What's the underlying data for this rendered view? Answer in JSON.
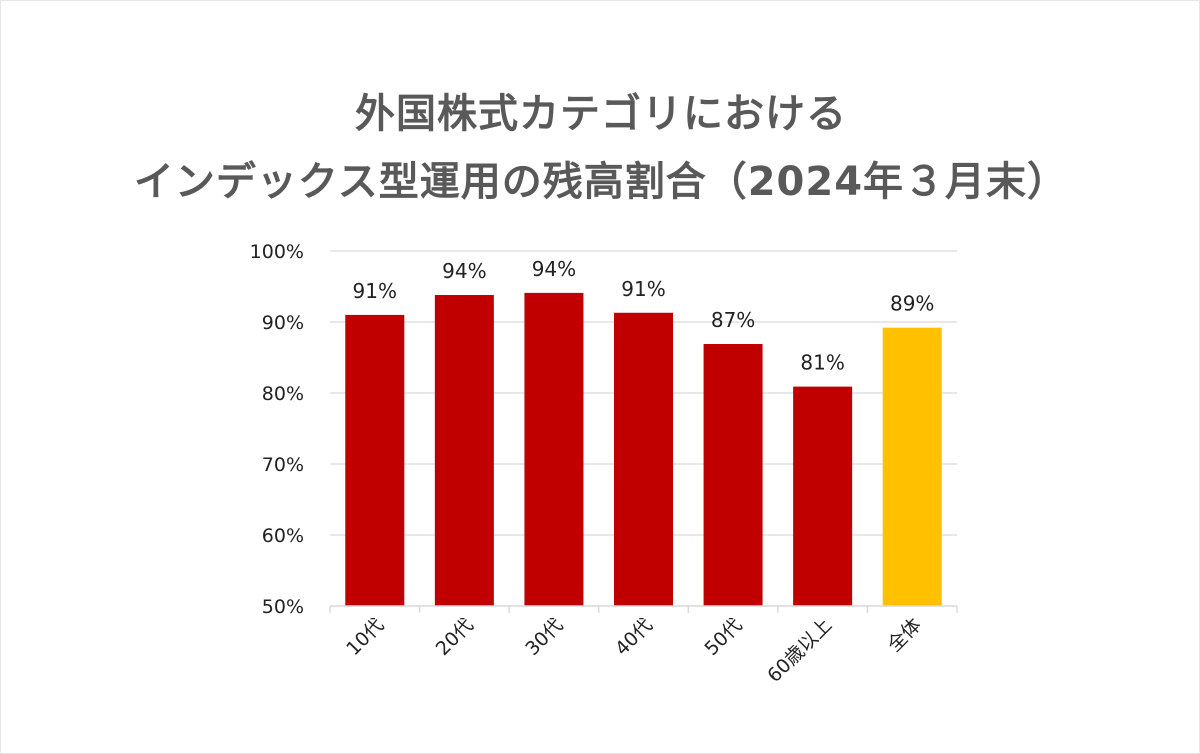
{
  "chart_data": {
    "type": "bar",
    "title": [
      "外国株式カテゴリにおける",
      "インデックス型運用の残高割合（2024年３月末）"
    ],
    "xlabel": "",
    "ylabel": "",
    "categories": [
      "10代",
      "20代",
      "30代",
      "40代",
      "50代",
      "60歳以上",
      "全体"
    ],
    "series": [
      {
        "values": [
          91.0,
          93.8,
          94.1,
          91.3,
          86.9,
          80.9,
          89.2
        ]
      }
    ],
    "data_labels": [
      "91%",
      "94%",
      "94%",
      "91%",
      "87%",
      "81%",
      "89%"
    ],
    "ylim": [
      50,
      100
    ],
    "yticks": [
      50,
      60,
      70,
      80,
      90,
      100
    ],
    "ytick_labels": [
      "50%",
      "60%",
      "70%",
      "80%",
      "90%",
      "100%"
    ],
    "grid": true,
    "bar_colors": [
      "#c00000",
      "#c00000",
      "#c00000",
      "#c00000",
      "#c00000",
      "#c00000",
      "#ffc000"
    ],
    "gridline_color": "#d9d9d9"
  }
}
